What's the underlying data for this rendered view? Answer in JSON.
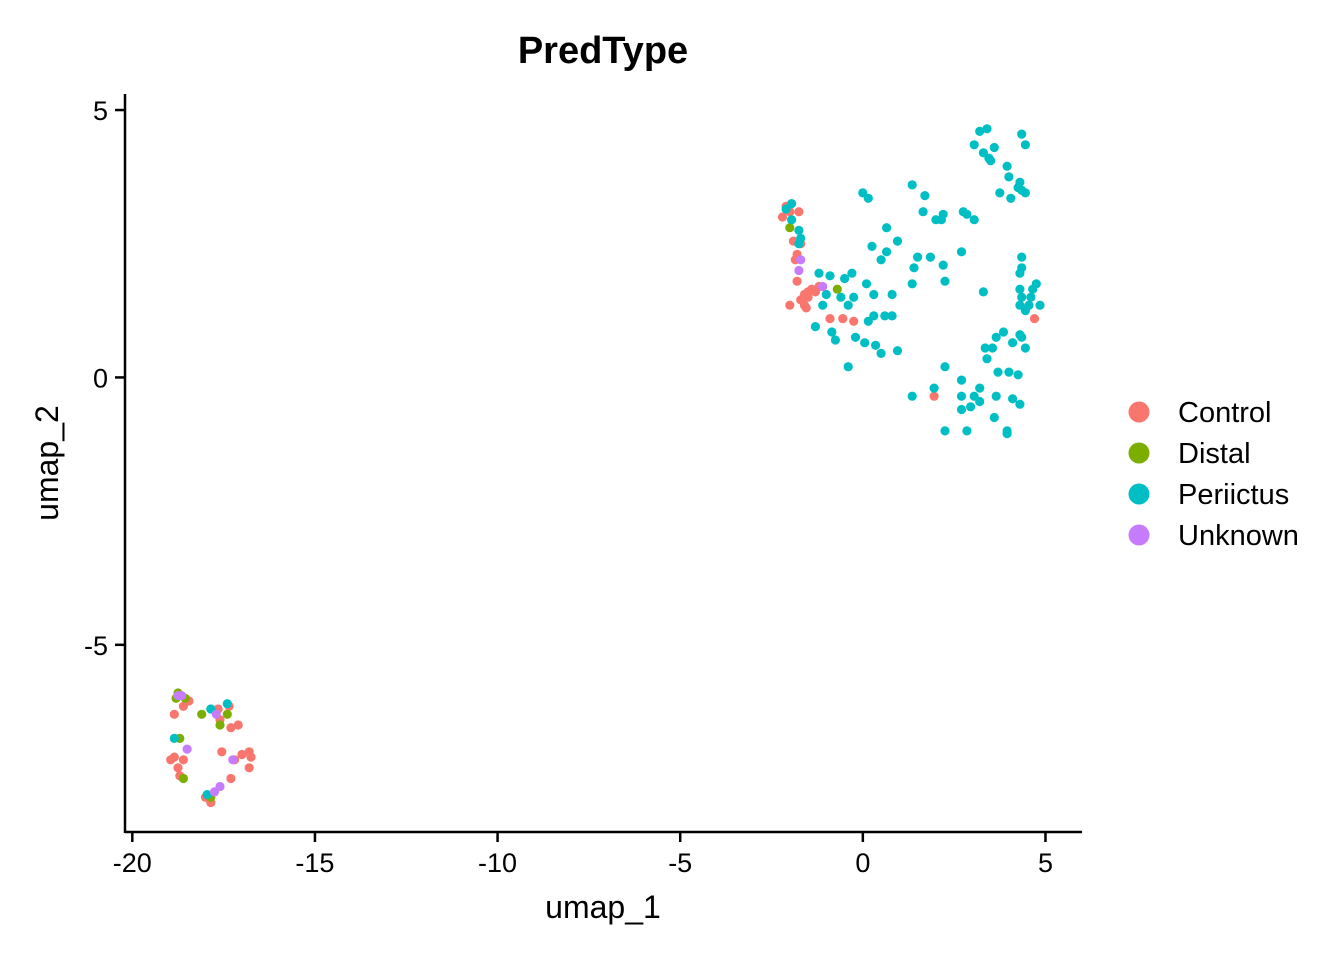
{
  "chart_data": {
    "type": "scatter",
    "title": "PredType",
    "xlabel": "umap_1",
    "ylabel": "umap_2",
    "xlim": [
      -20.2,
      6.0
    ],
    "ylim": [
      -8.5,
      5.3
    ],
    "xticks": [
      -20,
      -15,
      -10,
      -5,
      0,
      5
    ],
    "yticks": [
      -5,
      0,
      5
    ],
    "grid": false,
    "legend_position": "right",
    "series": [
      {
        "name": "Control",
        "color": "#F8766D",
        "points": [
          [
            -2.1,
            3.2
          ],
          [
            -2.0,
            3.1
          ],
          [
            -1.75,
            3.1
          ],
          [
            -2.2,
            3.0
          ],
          [
            -1.9,
            2.55
          ],
          [
            -1.7,
            2.5
          ],
          [
            -1.8,
            2.3
          ],
          [
            -1.85,
            2.2
          ],
          [
            -1.8,
            1.8
          ],
          [
            -1.5,
            1.6
          ],
          [
            -1.6,
            1.55
          ],
          [
            -1.4,
            1.65
          ],
          [
            -1.3,
            1.6
          ],
          [
            -1.5,
            1.5
          ],
          [
            -1.7,
            1.45
          ],
          [
            -2.0,
            1.35
          ],
          [
            -1.6,
            1.35
          ],
          [
            -1.55,
            1.3
          ],
          [
            -0.9,
            1.1
          ],
          [
            -0.55,
            1.1
          ],
          [
            -0.25,
            1.05
          ],
          [
            -1.2,
            1.7
          ],
          [
            1.95,
            -0.35
          ],
          [
            4.7,
            1.1
          ],
          [
            -18.95,
            -7.15
          ],
          [
            -18.85,
            -7.1
          ],
          [
            -18.75,
            -7.3
          ],
          [
            -18.7,
            -7.45
          ],
          [
            -18.85,
            -6.3
          ],
          [
            -18.6,
            -6.15
          ],
          [
            -18.45,
            -6.05
          ],
          [
            -18.6,
            -7.15
          ],
          [
            -17.65,
            -6.2
          ],
          [
            -17.6,
            -6.4
          ],
          [
            -17.35,
            -6.15
          ],
          [
            -17.3,
            -6.55
          ],
          [
            -17.1,
            -6.5
          ],
          [
            -17.55,
            -7.0
          ],
          [
            -17.2,
            -7.15
          ],
          [
            -17.0,
            -7.05
          ],
          [
            -16.8,
            -7.0
          ],
          [
            -16.75,
            -7.1
          ],
          [
            -16.8,
            -7.3
          ],
          [
            -17.3,
            -7.5
          ],
          [
            -17.85,
            -7.95
          ],
          [
            -18.0,
            -7.85
          ]
        ]
      },
      {
        "name": "Distal",
        "color": "#7CAE00",
        "points": [
          [
            -2.0,
            2.8
          ],
          [
            -0.7,
            1.65
          ],
          [
            -18.75,
            -5.9
          ],
          [
            -18.8,
            -6.0
          ],
          [
            -18.55,
            -6.0
          ],
          [
            -18.1,
            -6.3
          ],
          [
            -18.7,
            -6.75
          ],
          [
            -18.6,
            -7.5
          ],
          [
            -17.6,
            -6.5
          ],
          [
            -17.85,
            -7.85
          ],
          [
            -17.4,
            -6.3
          ]
        ]
      },
      {
        "name": "Periictus",
        "color": "#00BFC4",
        "points": [
          [
            -2.1,
            3.15
          ],
          [
            -1.95,
            3.25
          ],
          [
            -1.95,
            2.95
          ],
          [
            -1.75,
            2.75
          ],
          [
            -1.7,
            2.6
          ],
          [
            -1.75,
            2.5
          ],
          [
            -1.2,
            1.95
          ],
          [
            -0.9,
            1.9
          ],
          [
            -0.5,
            1.85
          ],
          [
            -0.3,
            1.95
          ],
          [
            -1.0,
            1.55
          ],
          [
            -0.6,
            1.5
          ],
          [
            -0.25,
            1.5
          ],
          [
            -1.1,
            1.35
          ],
          [
            -0.4,
            1.35
          ],
          [
            0.1,
            1.75
          ],
          [
            0.3,
            1.55
          ],
          [
            0.8,
            1.55
          ],
          [
            -1.3,
            0.95
          ],
          [
            -0.85,
            0.85
          ],
          [
            -0.75,
            0.7
          ],
          [
            -0.2,
            0.75
          ],
          [
            0.05,
            0.65
          ],
          [
            0.35,
            0.6
          ],
          [
            0.5,
            0.45
          ],
          [
            0.95,
            0.5
          ],
          [
            -0.4,
            0.2
          ],
          [
            0.3,
            1.15
          ],
          [
            0.6,
            1.15
          ],
          [
            0.8,
            1.15
          ],
          [
            0.15,
            1.05
          ],
          [
            0.25,
            2.45
          ],
          [
            0.5,
            2.2
          ],
          [
            0.65,
            2.35
          ],
          [
            0.65,
            2.8
          ],
          [
            0.95,
            2.55
          ],
          [
            0.0,
            3.45
          ],
          [
            0.15,
            3.35
          ],
          [
            1.35,
            3.6
          ],
          [
            1.7,
            3.4
          ],
          [
            1.65,
            3.1
          ],
          [
            2.0,
            2.95
          ],
          [
            2.2,
            3.05
          ],
          [
            2.15,
            2.95
          ],
          [
            1.35,
            1.75
          ],
          [
            1.4,
            2.05
          ],
          [
            1.5,
            2.25
          ],
          [
            1.85,
            2.25
          ],
          [
            2.25,
            1.8
          ],
          [
            2.7,
            2.35
          ],
          [
            2.2,
            2.1
          ],
          [
            2.75,
            3.1
          ],
          [
            2.85,
            3.05
          ],
          [
            3.05,
            2.95
          ],
          [
            3.05,
            4.35
          ],
          [
            3.2,
            4.6
          ],
          [
            3.4,
            4.65
          ],
          [
            3.3,
            4.2
          ],
          [
            3.5,
            4.05
          ],
          [
            3.45,
            4.1
          ],
          [
            3.6,
            4.3
          ],
          [
            3.95,
            3.95
          ],
          [
            4.35,
            4.55
          ],
          [
            4.45,
            4.35
          ],
          [
            4.0,
            3.75
          ],
          [
            4.3,
            3.65
          ],
          [
            4.25,
            3.55
          ],
          [
            4.35,
            3.5
          ],
          [
            3.75,
            3.45
          ],
          [
            4.45,
            3.45
          ],
          [
            4.05,
            3.35
          ],
          [
            3.3,
            1.6
          ],
          [
            3.35,
            0.55
          ],
          [
            3.55,
            0.55
          ],
          [
            3.65,
            0.75
          ],
          [
            3.85,
            0.85
          ],
          [
            4.1,
            0.65
          ],
          [
            4.3,
            0.8
          ],
          [
            4.35,
            0.75
          ],
          [
            4.45,
            0.55
          ],
          [
            3.4,
            0.35
          ],
          [
            3.7,
            0.1
          ],
          [
            4.0,
            0.1
          ],
          [
            4.25,
            0.05
          ],
          [
            4.3,
            1.65
          ],
          [
            4.35,
            1.5
          ],
          [
            4.3,
            1.35
          ],
          [
            4.45,
            1.25
          ],
          [
            4.55,
            1.35
          ],
          [
            4.6,
            1.5
          ],
          [
            4.75,
            1.75
          ],
          [
            4.65,
            1.65
          ],
          [
            4.85,
            1.35
          ],
          [
            4.35,
            2.05
          ],
          [
            4.3,
            1.95
          ],
          [
            4.35,
            2.25
          ],
          [
            2.25,
            0.2
          ],
          [
            2.7,
            -0.05
          ],
          [
            2.7,
            -0.35
          ],
          [
            3.05,
            -0.35
          ],
          [
            3.2,
            -0.2
          ],
          [
            3.2,
            -0.45
          ],
          [
            2.95,
            -0.55
          ],
          [
            2.7,
            -0.6
          ],
          [
            3.65,
            -0.35
          ],
          [
            3.6,
            -0.75
          ],
          [
            4.1,
            -0.4
          ],
          [
            4.3,
            -0.5
          ],
          [
            3.95,
            -1.0
          ],
          [
            3.95,
            -1.05
          ],
          [
            2.25,
            -1.0
          ],
          [
            2.85,
            -1.0
          ],
          [
            1.35,
            -0.35
          ],
          [
            1.95,
            -0.2
          ],
          [
            -18.85,
            -6.75
          ],
          [
            -17.4,
            -6.1
          ],
          [
            -17.85,
            -6.2
          ],
          [
            -17.95,
            -7.8
          ]
        ]
      },
      {
        "name": "Unknown",
        "color": "#C77CFF",
        "points": [
          [
            -1.7,
            2.2
          ],
          [
            -1.75,
            2.0
          ],
          [
            -1.1,
            1.7
          ],
          [
            -18.75,
            -5.95
          ],
          [
            -18.65,
            -5.95
          ],
          [
            -18.5,
            -6.95
          ],
          [
            -17.7,
            -6.3
          ],
          [
            -17.25,
            -7.15
          ],
          [
            -17.75,
            -7.75
          ],
          [
            -17.6,
            -7.65
          ]
        ]
      }
    ]
  }
}
